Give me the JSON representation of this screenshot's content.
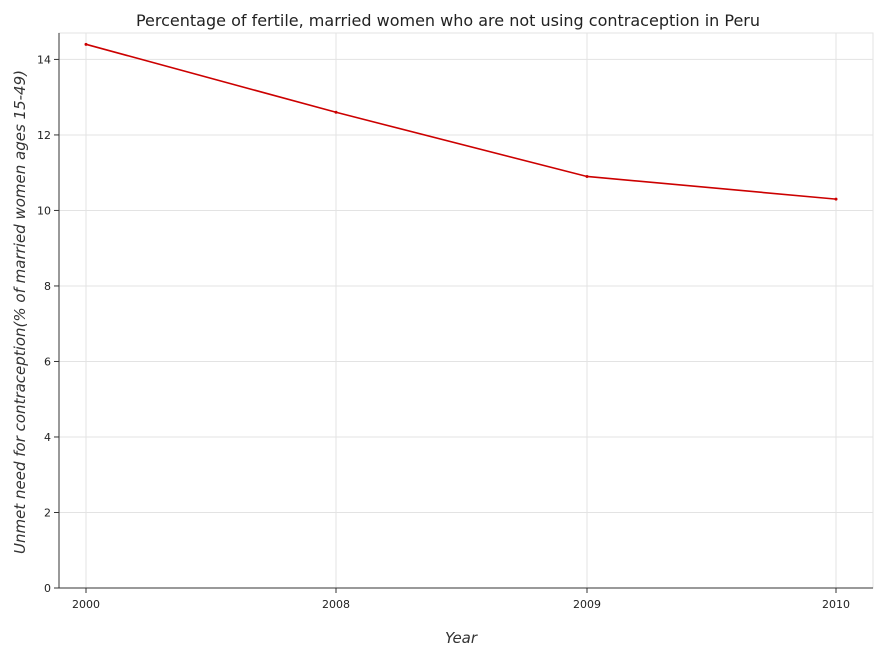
{
  "chart_data": {
    "type": "line",
    "title": "Percentage of fertile, married women who are not using contraception in Peru",
    "xlabel": "Year",
    "ylabel": "Unmet need for contraception(% of married women ages 15-49)",
    "categories": [
      "2000",
      "2008",
      "2009",
      "2010"
    ],
    "series": [
      {
        "values": [
          14.4,
          12.6,
          10.9,
          10.3
        ],
        "color": "#cc0000"
      }
    ],
    "ylim": [
      0,
      14.7
    ],
    "yticks": [
      0,
      2,
      4,
      6,
      8,
      10,
      12,
      14
    ],
    "grid": true,
    "legend": "none"
  }
}
